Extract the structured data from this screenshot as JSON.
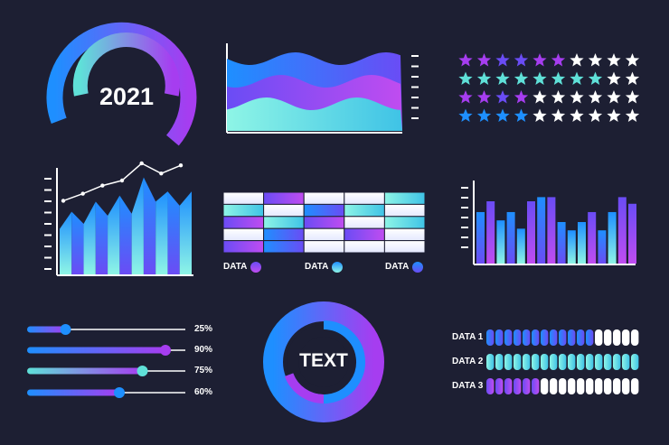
{
  "colors": {
    "background": "#1d1f33",
    "blue": "#1e8fff",
    "purple": "#a63df0",
    "violet": "#6a4cf5",
    "teal": "#5fe0d8",
    "white": "#ffffff"
  },
  "gauge": {
    "label": "2021",
    "outer_fill": 0.62,
    "inner_fill": 0.55
  },
  "wave_chart": {
    "type": "area",
    "layers": [
      {
        "color": "blue",
        "level": 0.8
      },
      {
        "color": "purple",
        "level": 0.55
      },
      {
        "color": "teal",
        "level": 0.3
      }
    ]
  },
  "star_rating": {
    "rows": [
      {
        "filled": 6,
        "total": 10,
        "color": "purple"
      },
      {
        "filled": 8,
        "total": 10,
        "color": "teal"
      },
      {
        "filled": 4,
        "total": 10,
        "color": "purple"
      },
      {
        "filled": 4,
        "total": 10,
        "color": "blue"
      }
    ]
  },
  "chart_data": [
    {
      "type": "area",
      "id": "peak-chart",
      "values": [
        0.45,
        0.62,
        0.5,
        0.72,
        0.58,
        0.78,
        0.6,
        0.96,
        0.72,
        0.82,
        0.68,
        0.82
      ],
      "line": [
        0.55,
        0.62,
        0.7,
        0.75,
        0.92,
        0.82,
        0.9
      ]
    },
    {
      "type": "bar",
      "id": "bar-chart",
      "values": [
        0.62,
        0.75,
        0.52,
        0.62,
        0.42,
        0.75,
        0.8,
        0.8,
        0.5,
        0.4,
        0.5,
        0.62,
        0.4,
        0.62,
        0.8,
        0.72
      ],
      "colors": [
        "blue",
        "purple",
        "teal",
        "blue",
        "teal",
        "purple",
        "blue",
        "purple",
        "blue",
        "teal",
        "teal",
        "purple",
        "blue",
        "teal",
        "purple",
        "purple"
      ]
    }
  ],
  "table_grid": {
    "rows": [
      [
        "white",
        "purple",
        "white",
        "white",
        "teal"
      ],
      [
        "teal",
        "white",
        "blue",
        "teal",
        "white"
      ],
      [
        "purple",
        "teal",
        "purple",
        "white",
        "teal"
      ],
      [
        "white",
        "blue",
        "white",
        "purple",
        "white"
      ],
      [
        "purple",
        "blue",
        "white",
        "white",
        "white"
      ]
    ],
    "legend": [
      {
        "label": "DATA",
        "color": "purple"
      },
      {
        "label": "DATA",
        "color": "teal"
      },
      {
        "label": "DATA",
        "color": "blue"
      }
    ]
  },
  "sliders": [
    {
      "value": 0.25,
      "label": "25%",
      "color": "blue"
    },
    {
      "value": 0.9,
      "label": "90%",
      "color": "purple"
    },
    {
      "value": 0.75,
      "label": "75%",
      "color": "teal"
    },
    {
      "value": 0.6,
      "label": "60%",
      "color": "blue"
    }
  ],
  "donut": {
    "label": "TEXT",
    "inner_fill": 0.82
  },
  "progress_bars": [
    {
      "label": "DATA 1",
      "filled": 12,
      "total": 17,
      "color": "blue"
    },
    {
      "label": "DATA 2",
      "filled": 17,
      "total": 17,
      "color": "teal"
    },
    {
      "label": "DATA 3",
      "filled": 6,
      "total": 17,
      "color": "purple"
    }
  ]
}
